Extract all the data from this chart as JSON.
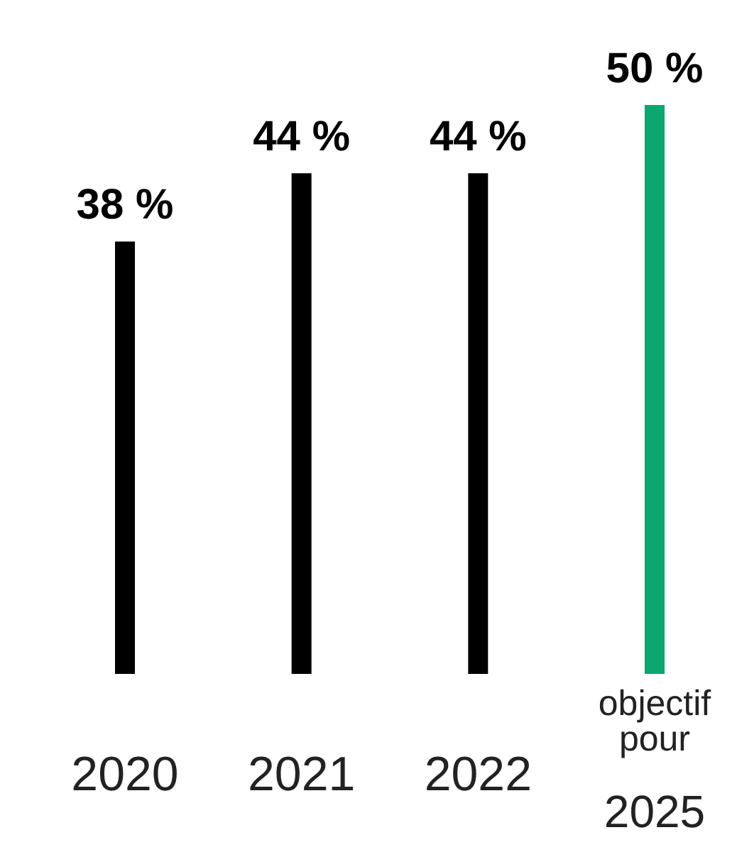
{
  "chart_data": {
    "type": "bar",
    "categories": [
      "2020",
      "2021",
      "2022",
      "objectif pour 2025"
    ],
    "values": [
      38,
      44,
      44,
      50
    ],
    "colors": [
      "#000000",
      "#000000",
      "#000000",
      "#0aa870"
    ],
    "value_labels": [
      "38 %",
      "44 %",
      "44 %",
      "50 %"
    ]
  }
}
